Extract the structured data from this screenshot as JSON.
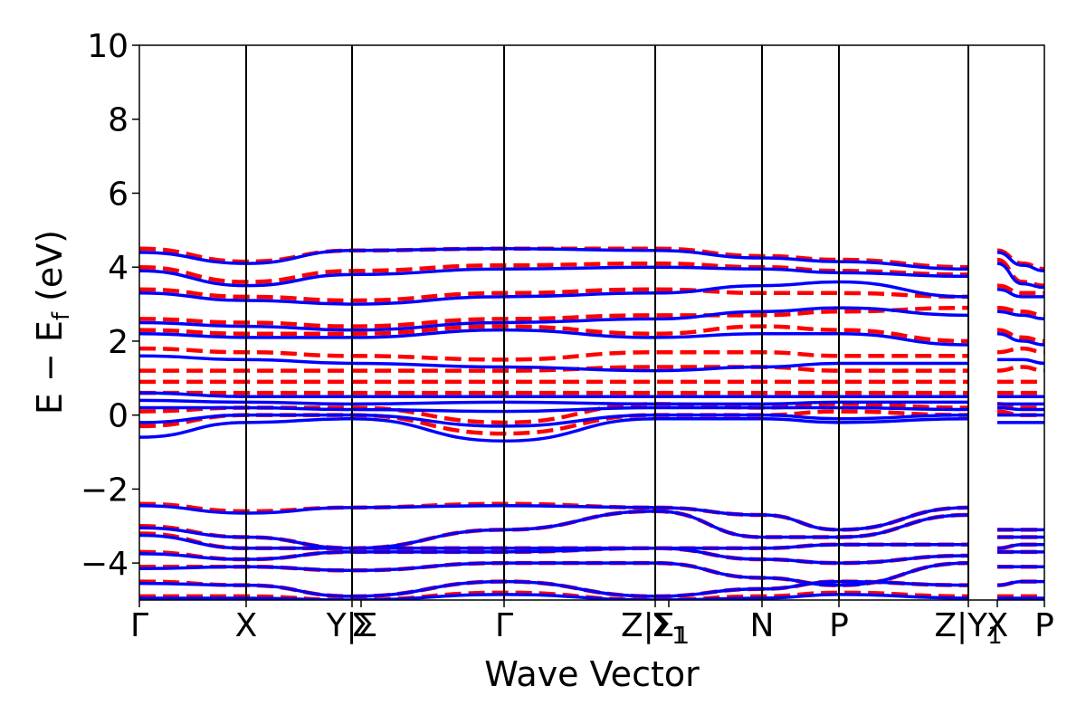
{
  "chart_data": {
    "type": "line",
    "title": "",
    "xlabel": "Wave Vector",
    "ylabel_main": "E − E",
    "ylabel_sub": "f",
    "ylabel_unit": " (eV)",
    "ylim": [
      -5,
      10
    ],
    "yticks": [
      {
        "value": -4,
        "label": "−4"
      },
      {
        "value": -2,
        "label": "−2"
      },
      {
        "value": 0,
        "label": "0"
      },
      {
        "value": 2,
        "label": "2"
      },
      {
        "value": 4,
        "label": "4"
      },
      {
        "value": 6,
        "label": "6"
      },
      {
        "value": 8,
        "label": "8"
      },
      {
        "value": 10,
        "label": "10"
      }
    ],
    "xrange": [
      0,
      1
    ],
    "kpoints": [
      {
        "x": 0.0,
        "label": "Γ",
        "sub": ""
      },
      {
        "x": 0.118,
        "label": "X",
        "sub": ""
      },
      {
        "x": 0.235,
        "label": "Y|Σ",
        "sub": ""
      },
      {
        "x": 0.245,
        "label": "Σ",
        "sub": ""
      },
      {
        "x": 0.403,
        "label": "Γ",
        "sub": ""
      },
      {
        "x": 0.57,
        "label": "Z|Σ",
        "sub": "1"
      },
      {
        "x": 0.585,
        "label": "Σ",
        "sub": "1"
      },
      {
        "x": 0.688,
        "label": "N",
        "sub": ""
      },
      {
        "x": 0.773,
        "label": "P",
        "sub": ""
      },
      {
        "x": 0.916,
        "label": "Z|Y",
        "sub": "1"
      },
      {
        "x": 0.948,
        "label": "X",
        "sub": ""
      },
      {
        "x": 1.0,
        "label": "P",
        "sub": ""
      }
    ],
    "vlines": [
      0.118,
      0.235,
      0.403,
      0.57,
      0.688,
      0.773,
      0.916
    ],
    "break_at": 0.916,
    "colors": {
      "series_a": "#ff0000",
      "series_b": "#0000ff",
      "frame": "#000000"
    },
    "series": [
      {
        "style": "dashed",
        "color": "#ff0000",
        "bands": [
          {
            "y": [
              4.5,
              4.15,
              4.45,
              4.5,
              4.5,
              4.3,
              4.2,
              4.0,
              4.45,
              4.1,
              3.95
            ]
          },
          {
            "y": [
              4.0,
              3.6,
              3.9,
              4.05,
              4.1,
              4.0,
              3.9,
              3.8,
              4.2,
              3.6,
              3.5
            ]
          },
          {
            "y": [
              3.4,
              3.2,
              3.1,
              3.3,
              3.4,
              3.3,
              3.3,
              3.2,
              3.5,
              3.3,
              3.3
            ]
          },
          {
            "y": [
              2.6,
              2.5,
              2.4,
              2.6,
              2.7,
              2.7,
              2.8,
              2.9,
              2.9,
              2.8,
              2.7
            ]
          },
          {
            "y": [
              2.3,
              2.2,
              2.2,
              2.4,
              2.2,
              2.4,
              2.3,
              2.0,
              2.3,
              2.1,
              2.0
            ]
          },
          {
            "y": [
              1.8,
              1.7,
              1.6,
              1.5,
              1.7,
              1.7,
              1.6,
              1.6,
              1.7,
              1.8,
              1.7
            ]
          },
          {
            "y": [
              1.2,
              1.2,
              1.2,
              1.2,
              1.3,
              1.3,
              1.2,
              1.2,
              1.2,
              1.3,
              1.2
            ]
          },
          {
            "y": [
              0.9,
              0.9,
              0.9,
              0.9,
              0.9,
              0.9,
              0.9,
              0.9,
              0.9,
              0.9,
              0.9
            ]
          },
          {
            "y": [
              0.6,
              0.6,
              0.6,
              0.6,
              0.6,
              0.6,
              0.6,
              0.6,
              0.6,
              0.6,
              0.6
            ]
          },
          {
            "y": [
              0.1,
              0.2,
              0.2,
              -0.2,
              0.3,
              0.2,
              0.3,
              0.2,
              0.3,
              0.2,
              0.2
            ]
          },
          {
            "y": [
              -0.3,
              0.0,
              0.0,
              -0.5,
              0.0,
              0.0,
              0.1,
              0.0,
              0.1,
              0.0,
              0.0
            ]
          },
          {
            "y": [
              -2.4,
              -2.6,
              -2.5,
              -2.4,
              -2.5,
              -2.7,
              -3.1,
              -2.5,
              -3.1,
              -3.1,
              -3.1
            ]
          },
          {
            "y": [
              -3.0,
              -3.3,
              -3.6,
              -3.1,
              -2.6,
              -3.3,
              -3.3,
              -2.7,
              -3.3,
              -3.3,
              -3.3
            ]
          },
          {
            "y": [
              -3.2,
              -3.6,
              -3.6,
              -3.6,
              -3.6,
              -3.6,
              -3.5,
              -3.5,
              -3.6,
              -3.5,
              -3.5
            ]
          },
          {
            "y": [
              -3.7,
              -3.9,
              -3.7,
              -3.7,
              -3.6,
              -3.9,
              -4.0,
              -3.8,
              -3.7,
              -3.7,
              -3.7
            ]
          },
          {
            "y": [
              -4.1,
              -4.1,
              -4.2,
              -4.0,
              -4.0,
              -4.4,
              -4.6,
              -4.0,
              -4.1,
              -4.1,
              -4.1
            ]
          },
          {
            "y": [
              -4.5,
              -4.6,
              -4.9,
              -4.5,
              -4.9,
              -4.7,
              -4.5,
              -4.6,
              -4.6,
              -4.5,
              -4.5
            ]
          },
          {
            "y": [
              -4.9,
              -4.9,
              -5.0,
              -4.8,
              -5.0,
              -4.9,
              -4.8,
              -4.9,
              -4.9,
              -4.9,
              -4.9
            ]
          }
        ]
      },
      {
        "style": "solid",
        "color": "#0000ff",
        "bands": [
          {
            "y": [
              4.4,
              4.1,
              4.45,
              4.5,
              4.45,
              4.25,
              4.15,
              3.95,
              4.4,
              4.05,
              3.9
            ]
          },
          {
            "y": [
              3.9,
              3.5,
              3.8,
              3.95,
              4.0,
              3.95,
              3.85,
              3.75,
              4.1,
              3.55,
              3.45
            ]
          },
          {
            "y": [
              3.3,
              3.1,
              3.0,
              3.2,
              3.3,
              3.5,
              3.6,
              3.2,
              3.4,
              3.2,
              3.2
            ]
          },
          {
            "y": [
              2.5,
              2.4,
              2.3,
              2.5,
              2.6,
              2.8,
              2.9,
              2.7,
              2.8,
              2.7,
              2.6
            ]
          },
          {
            "y": [
              2.2,
              2.1,
              2.1,
              2.3,
              2.1,
              2.2,
              2.2,
              1.9,
              2.2,
              2.0,
              1.9
            ]
          },
          {
            "y": [
              1.6,
              1.5,
              1.4,
              1.3,
              1.2,
              1.3,
              1.4,
              1.4,
              1.5,
              1.5,
              1.4
            ]
          },
          {
            "y": [
              0.6,
              0.5,
              0.5,
              0.5,
              0.5,
              0.5,
              0.5,
              0.5,
              0.5,
              0.5,
              0.5
            ]
          },
          {
            "y": [
              0.4,
              0.35,
              0.3,
              0.35,
              0.3,
              0.3,
              0.35,
              0.35,
              0.3,
              0.3,
              0.3
            ]
          },
          {
            "y": [
              0.2,
              0.2,
              0.15,
              0.1,
              0.2,
              0.2,
              0.2,
              0.15,
              0.2,
              0.15,
              0.15
            ]
          },
          {
            "y": [
              -0.2,
              0.0,
              0.0,
              -0.3,
              0.0,
              0.0,
              -0.1,
              0.0,
              0.0,
              0.0,
              0.0
            ]
          },
          {
            "y": [
              -0.6,
              -0.2,
              -0.1,
              -0.7,
              -0.1,
              -0.1,
              -0.2,
              -0.1,
              -0.2,
              -0.2,
              -0.2
            ]
          },
          {
            "y": [
              -2.45,
              -2.65,
              -2.5,
              -2.45,
              -2.5,
              -2.7,
              -3.1,
              -2.5,
              -3.1,
              -3.1,
              -3.1
            ]
          },
          {
            "y": [
              -3.05,
              -3.3,
              -3.6,
              -3.1,
              -2.6,
              -3.3,
              -3.3,
              -2.7,
              -3.3,
              -3.3,
              -3.3
            ]
          },
          {
            "y": [
              -3.25,
              -3.6,
              -3.6,
              -3.6,
              -3.6,
              -3.6,
              -3.5,
              -3.5,
              -3.6,
              -3.5,
              -3.5
            ]
          },
          {
            "y": [
              -3.75,
              -3.9,
              -3.7,
              -3.7,
              -3.6,
              -3.9,
              -4.0,
              -3.8,
              -3.7,
              -3.7,
              -3.7
            ]
          },
          {
            "y": [
              -4.15,
              -4.1,
              -4.2,
              -4.0,
              -4.0,
              -4.4,
              -4.6,
              -4.0,
              -4.1,
              -4.1,
              -4.1
            ]
          },
          {
            "y": [
              -4.55,
              -4.6,
              -4.9,
              -4.5,
              -4.9,
              -4.7,
              -4.5,
              -4.6,
              -4.6,
              -4.5,
              -4.5
            ]
          },
          {
            "y": [
              -4.95,
              -4.95,
              -5.0,
              -4.85,
              -5.0,
              -4.95,
              -4.85,
              -4.95,
              -4.95,
              -4.95,
              -4.95
            ]
          }
        ]
      }
    ]
  }
}
